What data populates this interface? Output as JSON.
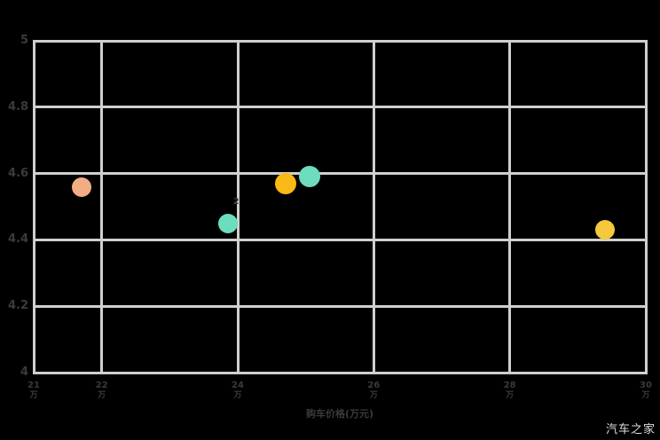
{
  "colors": {
    "background": "#000000",
    "gridline": "#cfcfcf",
    "tick_text": "#3a3a3a",
    "watermark_text": "#dedede"
  },
  "watermark": "汽车之家",
  "chart_data": {
    "type": "scatter",
    "title": "",
    "xlabel": "购车价格(万元)",
    "ylabel": "",
    "xlim": [
      21,
      30
    ],
    "ylim": [
      4,
      5
    ],
    "grid": true,
    "x_ticks": [
      {
        "value": 21,
        "label": "21",
        "unit": "万"
      },
      {
        "value": 22,
        "label": "22",
        "unit": "万"
      },
      {
        "value": 24,
        "label": "24",
        "unit": "万"
      },
      {
        "value": 26,
        "label": "26",
        "unit": "万"
      },
      {
        "value": 28,
        "label": "28",
        "unit": "万"
      },
      {
        "value": 30,
        "label": "30",
        "unit": "万"
      }
    ],
    "y_ticks": [
      {
        "value": 5,
        "label": "5"
      },
      {
        "value": 4.8,
        "label": "4.8"
      },
      {
        "value": 4.6,
        "label": "4.6"
      },
      {
        "value": 4.4,
        "label": "4.4"
      },
      {
        "value": 4.2,
        "label": "4.2"
      },
      {
        "value": 4,
        "label": "4"
      }
    ],
    "points": [
      {
        "name": "bubble-salmon",
        "x": 21.7,
        "y": 4.56,
        "radius": 11,
        "color": "#F2AD85"
      },
      {
        "name": "bubble-mint-left",
        "x": 23.85,
        "y": 4.45,
        "radius": 11,
        "color": "#6EDCBE"
      },
      {
        "name": "bubble-gold-left",
        "x": 24.7,
        "y": 4.57,
        "radius": 12,
        "color": "#F9B916"
      },
      {
        "name": "bubble-mint-right",
        "x": 25.05,
        "y": 4.59,
        "radius": 12,
        "color": "#6EDCBE"
      },
      {
        "name": "bubble-gold-right",
        "x": 29.4,
        "y": 4.43,
        "radius": 11,
        "color": "#F6C83C"
      }
    ],
    "annotations": [
      {
        "text": "2",
        "x": 23.97,
        "y": 4.51,
        "color": "#3f3f3f"
      }
    ]
  }
}
